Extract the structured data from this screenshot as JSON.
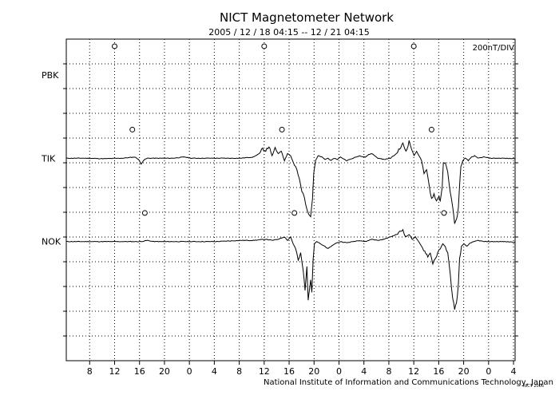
{
  "chart_data": {
    "type": "line",
    "title": "NICT Magnetometer Network",
    "subtitle": "2005 / 12 / 18   04:15 -- 12 / 21   04:15",
    "scale_label": "200nT/DIV",
    "credit": "National Institute of Information and Communications Technology, Japan",
    "credit_small": "NICT 2006",
    "xlabel": "",
    "ylabel": "",
    "grid": true,
    "x_ticks": [
      "8",
      "12",
      "16",
      "20",
      "0",
      "4",
      "8",
      "12",
      "16",
      "20",
      "0",
      "4",
      "8",
      "12",
      "16",
      "20",
      "0",
      "4"
    ],
    "x_tick_hours": [
      3.75,
      7.75,
      11.75,
      15.75,
      19.75,
      23.75,
      27.75,
      31.75,
      35.75,
      39.75,
      43.75,
      47.75,
      51.75,
      55.75,
      59.75,
      63.75,
      67.75,
      71.75
    ],
    "xlim": [
      0,
      72
    ],
    "ylim": [
      -3,
      10.5
    ],
    "y_divisions": 13,
    "stations": [
      {
        "name": "PBK",
        "baseline": 9.0,
        "local_midnight_hours": [
          7.75,
          31.75,
          55.75
        ],
        "values": []
      },
      {
        "name": "TIK",
        "baseline": 5.5,
        "local_midnight_hours": [
          10.6,
          34.6,
          58.6
        ],
        "values": [
          [
            0,
            0
          ],
          [
            3,
            0
          ],
          [
            6,
            -0.02
          ],
          [
            9,
            0
          ],
          [
            11,
            0.05
          ],
          [
            11.6,
            -0.05
          ],
          [
            12,
            -0.25
          ],
          [
            12.4,
            -0.08
          ],
          [
            13,
            0
          ],
          [
            15,
            0
          ],
          [
            17,
            0
          ],
          [
            19,
            0.05
          ],
          [
            20,
            0
          ],
          [
            24,
            0
          ],
          [
            28,
            0
          ],
          [
            30,
            0.05
          ],
          [
            31,
            0.2
          ],
          [
            31.5,
            0.4
          ],
          [
            32,
            0.3
          ],
          [
            32.5,
            0.5
          ],
          [
            33,
            0.1
          ],
          [
            33.5,
            0.4
          ],
          [
            34,
            0.2
          ],
          [
            34.5,
            0.3
          ],
          [
            35,
            -0.1
          ],
          [
            35.5,
            0.2
          ],
          [
            36,
            0.1
          ],
          [
            36.6,
            -0.3
          ],
          [
            37,
            -0.5
          ],
          [
            37.4,
            -0.9
          ],
          [
            37.8,
            -1.4
          ],
          [
            38.2,
            -1.6
          ],
          [
            38.6,
            -2.2
          ],
          [
            38.9,
            -2.3
          ],
          [
            39.2,
            -2.4
          ],
          [
            39.5,
            -1.7
          ],
          [
            39.7,
            -0.6
          ],
          [
            40,
            -0.1
          ],
          [
            40.4,
            0.1
          ],
          [
            41,
            0.05
          ],
          [
            41.5,
            -0.05
          ],
          [
            42,
            0
          ],
          [
            42.5,
            -0.1
          ],
          [
            43,
            0
          ],
          [
            43.5,
            -0.05
          ],
          [
            44,
            0.05
          ],
          [
            45,
            -0.1
          ],
          [
            46,
            0
          ],
          [
            47,
            0.1
          ],
          [
            48,
            0.05
          ],
          [
            48.5,
            0.15
          ],
          [
            49,
            0.2
          ],
          [
            49.5,
            0.1
          ],
          [
            50,
            0
          ],
          [
            51,
            -0.05
          ],
          [
            52,
            0
          ],
          [
            53,
            0.2
          ],
          [
            53.5,
            0.4
          ],
          [
            54,
            0.6
          ],
          [
            54.5,
            0.3
          ],
          [
            55,
            0.7
          ],
          [
            55.4,
            0.4
          ],
          [
            55.8,
            0.1
          ],
          [
            56.2,
            0.3
          ],
          [
            56.6,
            0.1
          ],
          [
            57,
            -0.1
          ],
          [
            57.4,
            -0.7
          ],
          [
            57.8,
            -0.5
          ],
          [
            58.2,
            -1.1
          ],
          [
            58.6,
            -1.7
          ],
          [
            59,
            -1.5
          ],
          [
            59.4,
            -1.8
          ],
          [
            59.8,
            -1.6
          ],
          [
            60,
            -1.8
          ],
          [
            60.3,
            -1.2
          ],
          [
            60.5,
            -0.2
          ],
          [
            60.8,
            -0.2
          ],
          [
            61.2,
            -0.6
          ],
          [
            61.6,
            -1.4
          ],
          [
            62,
            -2.1
          ],
          [
            62.3,
            -2.7
          ],
          [
            62.6,
            -2.6
          ],
          [
            62.9,
            -2.1
          ],
          [
            63.1,
            -1.1
          ],
          [
            63.3,
            -0.4
          ],
          [
            63.6,
            -0.1
          ],
          [
            64,
            0
          ],
          [
            64.5,
            -0.1
          ],
          [
            65,
            0.05
          ],
          [
            65.5,
            0.1
          ],
          [
            66,
            0
          ],
          [
            67,
            0.05
          ],
          [
            68,
            0
          ],
          [
            70,
            0
          ],
          [
            72,
            -0.02
          ]
        ]
      },
      {
        "name": "NOK",
        "baseline": 2.0,
        "local_midnight_hours": [
          12.6,
          36.6,
          60.6
        ],
        "values": [
          [
            0,
            0
          ],
          [
            3,
            0
          ],
          [
            6,
            0
          ],
          [
            9,
            0
          ],
          [
            10,
            0
          ],
          [
            12,
            0
          ],
          [
            13,
            0.05
          ],
          [
            14,
            0
          ],
          [
            16,
            0
          ],
          [
            18,
            0
          ],
          [
            20,
            0
          ],
          [
            24,
            0
          ],
          [
            28,
            0.05
          ],
          [
            30,
            0.05
          ],
          [
            32,
            0.1
          ],
          [
            33,
            0.05
          ],
          [
            34,
            0.1
          ],
          [
            35,
            0.2
          ],
          [
            35.5,
            0.05
          ],
          [
            36,
            0.2
          ],
          [
            36.4,
            -0.1
          ],
          [
            36.8,
            -0.3
          ],
          [
            37.2,
            -0.8
          ],
          [
            37.6,
            -0.5
          ],
          [
            38,
            -1.2
          ],
          [
            38.3,
            -2.0
          ],
          [
            38.6,
            -1.1
          ],
          [
            38.8,
            -2.4
          ],
          [
            39,
            -2.0
          ],
          [
            39.2,
            -1.6
          ],
          [
            39.4,
            -2.1
          ],
          [
            39.6,
            -0.8
          ],
          [
            39.8,
            -0.1
          ],
          [
            40.2,
            0
          ],
          [
            40.8,
            -0.1
          ],
          [
            41.5,
            -0.2
          ],
          [
            42,
            -0.3
          ],
          [
            42.5,
            -0.2
          ],
          [
            43,
            -0.1
          ],
          [
            44,
            0
          ],
          [
            45,
            -0.05
          ],
          [
            46,
            0
          ],
          [
            47,
            0.05
          ],
          [
            48,
            0
          ],
          [
            49,
            0.1
          ],
          [
            50,
            0.05
          ],
          [
            51,
            0.1
          ],
          [
            52,
            0.2
          ],
          [
            53,
            0.3
          ],
          [
            54,
            0.5
          ],
          [
            54.5,
            0.2
          ],
          [
            55,
            0.3
          ],
          [
            55.5,
            0.1
          ],
          [
            56,
            0.2
          ],
          [
            56.5,
            0
          ],
          [
            57,
            -0.2
          ],
          [
            57.5,
            -0.4
          ],
          [
            58,
            -0.6
          ],
          [
            58.4,
            -0.5
          ],
          [
            58.8,
            -0.9
          ],
          [
            59.2,
            -0.7
          ],
          [
            59.6,
            -0.5
          ],
          [
            60,
            -0.3
          ],
          [
            60.4,
            -0.1
          ],
          [
            60.8,
            -0.2
          ],
          [
            61.2,
            -0.5
          ],
          [
            61.6,
            -1.4
          ],
          [
            62,
            -2.4
          ],
          [
            62.3,
            -2.8
          ],
          [
            62.6,
            -2.6
          ],
          [
            62.9,
            -1.8
          ],
          [
            63.1,
            -0.7
          ],
          [
            63.4,
            -0.2
          ],
          [
            63.8,
            -0.1
          ],
          [
            64.3,
            -0.2
          ],
          [
            64.8,
            -0.05
          ],
          [
            65.5,
            0
          ],
          [
            66,
            0.05
          ],
          [
            67,
            0
          ],
          [
            68,
            0
          ],
          [
            70,
            0
          ],
          [
            72,
            -0.02
          ]
        ]
      }
    ]
  }
}
